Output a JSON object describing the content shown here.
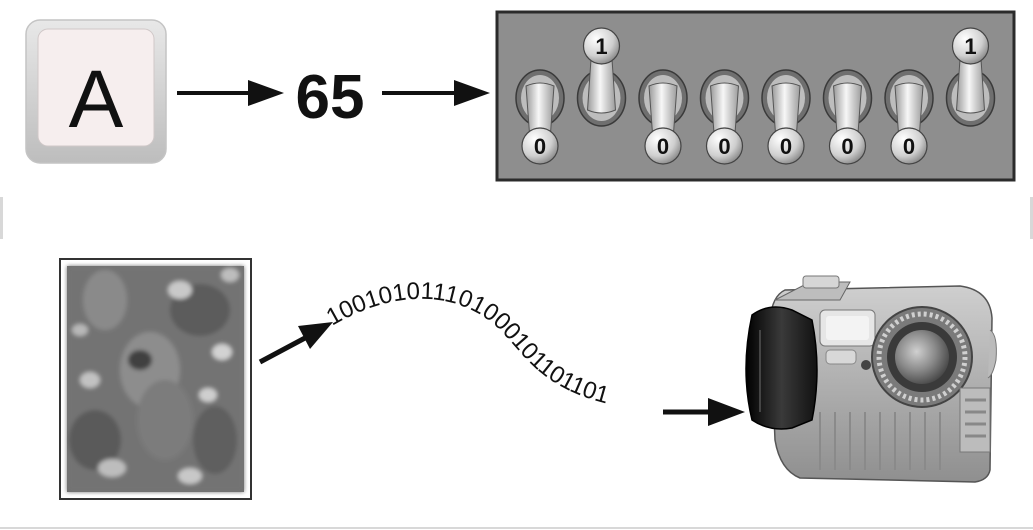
{
  "keycap": {
    "letter": "A"
  },
  "ascii_code": "65",
  "switch_bits": [
    "0",
    "1",
    "0",
    "0",
    "0",
    "0",
    "0",
    "1"
  ],
  "binary_stream": "100101011101000101101101",
  "colors": {
    "panel": "#8e8e8e",
    "panel_border": "#2b2b2b",
    "keycap_outer": "#d9d9d9",
    "keycap_face": "#f6eeee",
    "arrow": "#111111",
    "camera_body": "#a9a9a9",
    "camera_grip": "#222222"
  },
  "icons": [
    "keyboard-key-icon",
    "toggle-switch-icon",
    "photo-icon",
    "camera-icon",
    "arrow-right-icon"
  ]
}
